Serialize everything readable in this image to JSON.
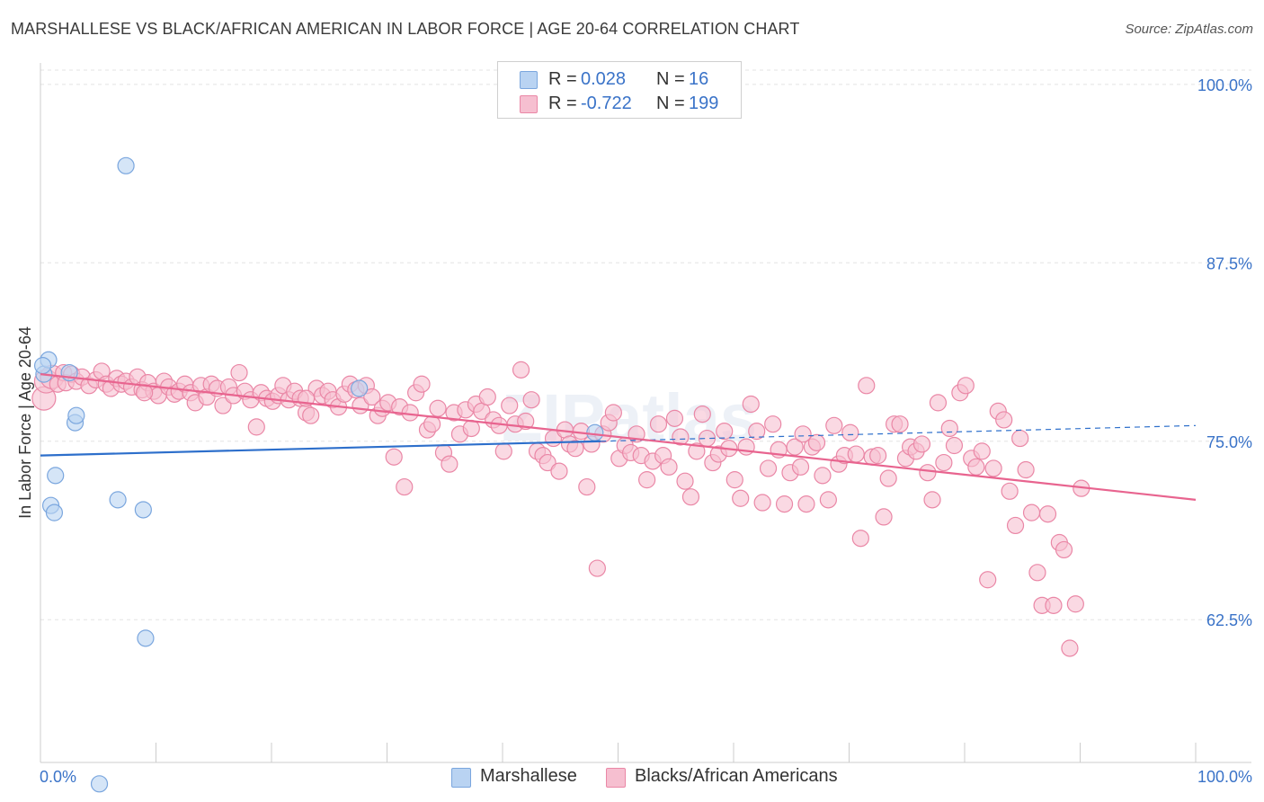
{
  "title": "MARSHALLESE VS BLACK/AFRICAN AMERICAN IN LABOR FORCE | AGE 20-64 CORRELATION CHART",
  "source": "Source: ZipAtlas.com",
  "watermark": "ZIPatlas",
  "legend": {
    "rows": [
      {
        "r_label": "R =",
        "r_value": "0.028",
        "n_label": "N =",
        "n_value": "16"
      },
      {
        "r_label": "R =",
        "r_value": "-0.722",
        "n_label": "N =",
        "n_value": "199"
      }
    ]
  },
  "bottom_legend": [
    "Marshallese",
    "Blacks/African Americans"
  ],
  "colors": {
    "blue_fill": "#b9d3f2",
    "blue_stroke": "#7aa6de",
    "blue_line": "#2d6fcb",
    "pink_fill": "#f6bfd0",
    "pink_stroke": "#ea87a6",
    "pink_line": "#e8648f",
    "tick_label": "#3a73c8",
    "grid": "#e3e3e3"
  },
  "chart_data": {
    "type": "scatter",
    "title": "MARSHALLESE VS BLACK/AFRICAN AMERICAN IN LABOR FORCE | AGE 20-64 CORRELATION CHART",
    "xlabel": "",
    "ylabel": "In Labor Force | Age 20-64",
    "xlim": [
      0,
      100
    ],
    "ylim": [
      52.5,
      101.5
    ],
    "x_tick_labels": [
      "0.0%",
      "100.0%"
    ],
    "y_ticks": [
      100.0,
      87.5,
      75.0,
      62.5
    ],
    "y_tick_labels": [
      "100.0%",
      "87.5%",
      "75.0%",
      "62.5%"
    ],
    "grid": true,
    "legend_position": "top-center",
    "series": [
      {
        "name": "Marshallese",
        "r": 0.028,
        "n": 16,
        "trend": {
          "x0": 0,
          "y0": 74.0,
          "x1": 48.5,
          "y1": 75.0,
          "dashed_to_x": 100,
          "dashed_to_y": 76.1
        },
        "points": [
          [
            0.3,
            79.7
          ],
          [
            0.7,
            80.7
          ],
          [
            2.5,
            79.8
          ],
          [
            3.0,
            76.3
          ],
          [
            3.1,
            76.8
          ],
          [
            0.9,
            70.5
          ],
          [
            1.2,
            70.0
          ],
          [
            1.3,
            72.6
          ],
          [
            6.7,
            70.9
          ],
          [
            8.9,
            70.2
          ],
          [
            7.4,
            94.3
          ],
          [
            9.1,
            61.2
          ],
          [
            5.1,
            51.0
          ],
          [
            27.6,
            78.7
          ],
          [
            48.0,
            75.6
          ],
          [
            0.2,
            80.3
          ]
        ]
      },
      {
        "name": "Blacks/African Americans",
        "r": -0.722,
        "n": 199,
        "trend": {
          "x0": 0,
          "y0": 79.7,
          "x1": 100,
          "y1": 70.9
        },
        "points": [
          [
            0.3,
            78.0
          ],
          [
            0.5,
            79.2
          ],
          [
            1.0,
            79.5
          ],
          [
            1.5,
            79.0
          ],
          [
            2.0,
            79.8
          ],
          [
            2.2,
            79.1
          ],
          [
            2.7,
            79.7
          ],
          [
            3.1,
            79.2
          ],
          [
            3.6,
            79.5
          ],
          [
            4.2,
            78.9
          ],
          [
            4.8,
            79.3
          ],
          [
            5.3,
            79.9
          ],
          [
            5.7,
            79.0
          ],
          [
            6.1,
            78.7
          ],
          [
            6.6,
            79.4
          ],
          [
            7.0,
            79.0
          ],
          [
            7.4,
            79.2
          ],
          [
            7.9,
            78.8
          ],
          [
            8.4,
            79.5
          ],
          [
            8.8,
            78.6
          ],
          [
            9.3,
            79.1
          ],
          [
            9.8,
            78.5
          ],
          [
            10.2,
            78.2
          ],
          [
            10.7,
            79.2
          ],
          [
            11.1,
            78.8
          ],
          [
            11.6,
            78.3
          ],
          [
            12.0,
            78.5
          ],
          [
            12.5,
            79.0
          ],
          [
            13.0,
            78.4
          ],
          [
            13.4,
            77.7
          ],
          [
            13.9,
            78.9
          ],
          [
            14.4,
            78.1
          ],
          [
            14.8,
            79.0
          ],
          [
            15.3,
            78.7
          ],
          [
            15.8,
            77.5
          ],
          [
            16.3,
            78.8
          ],
          [
            16.7,
            78.2
          ],
          [
            17.2,
            79.8
          ],
          [
            17.7,
            78.5
          ],
          [
            18.2,
            77.9
          ],
          [
            18.7,
            76.0
          ],
          [
            19.1,
            78.4
          ],
          [
            19.6,
            78.0
          ],
          [
            20.1,
            77.8
          ],
          [
            20.6,
            78.2
          ],
          [
            21.0,
            78.9
          ],
          [
            21.5,
            77.9
          ],
          [
            22.0,
            78.5
          ],
          [
            22.5,
            78.0
          ],
          [
            23.0,
            77.0
          ],
          [
            23.4,
            76.8
          ],
          [
            23.9,
            78.7
          ],
          [
            24.4,
            78.2
          ],
          [
            24.9,
            78.5
          ],
          [
            25.3,
            77.9
          ],
          [
            25.8,
            77.4
          ],
          [
            26.3,
            78.3
          ],
          [
            26.8,
            79.0
          ],
          [
            27.3,
            78.6
          ],
          [
            27.7,
            77.5
          ],
          [
            28.2,
            78.9
          ],
          [
            28.7,
            78.1
          ],
          [
            29.2,
            76.8
          ],
          [
            29.6,
            77.3
          ],
          [
            30.1,
            77.7
          ],
          [
            30.6,
            73.9
          ],
          [
            31.1,
            77.4
          ],
          [
            31.5,
            71.8
          ],
          [
            32.0,
            77.0
          ],
          [
            32.5,
            78.4
          ],
          [
            33.0,
            79.0
          ],
          [
            33.5,
            75.8
          ],
          [
            33.9,
            76.2
          ],
          [
            34.4,
            77.3
          ],
          [
            34.9,
            74.2
          ],
          [
            35.4,
            73.4
          ],
          [
            35.8,
            77.0
          ],
          [
            36.3,
            75.5
          ],
          [
            36.8,
            77.2
          ],
          [
            37.3,
            75.9
          ],
          [
            37.7,
            77.6
          ],
          [
            38.2,
            77.1
          ],
          [
            38.7,
            78.1
          ],
          [
            39.2,
            76.5
          ],
          [
            39.7,
            76.1
          ],
          [
            40.1,
            74.3
          ],
          [
            40.6,
            77.5
          ],
          [
            41.1,
            76.2
          ],
          [
            41.6,
            80.0
          ],
          [
            42.0,
            76.4
          ],
          [
            42.5,
            77.9
          ],
          [
            43.0,
            74.3
          ],
          [
            43.5,
            74.0
          ],
          [
            43.9,
            73.5
          ],
          [
            44.4,
            75.2
          ],
          [
            44.9,
            72.9
          ],
          [
            45.4,
            75.8
          ],
          [
            45.8,
            74.8
          ],
          [
            46.3,
            74.5
          ],
          [
            46.8,
            75.7
          ],
          [
            47.3,
            71.8
          ],
          [
            47.7,
            74.8
          ],
          [
            48.2,
            66.1
          ],
          [
            48.7,
            75.5
          ],
          [
            49.2,
            76.3
          ],
          [
            49.6,
            77.0
          ],
          [
            50.1,
            73.8
          ],
          [
            50.6,
            74.7
          ],
          [
            51.1,
            74.2
          ],
          [
            51.6,
            75.5
          ],
          [
            52.0,
            74.0
          ],
          [
            52.5,
            72.3
          ],
          [
            53.0,
            73.6
          ],
          [
            53.5,
            76.2
          ],
          [
            53.9,
            74.0
          ],
          [
            54.4,
            73.2
          ],
          [
            54.9,
            76.6
          ],
          [
            55.4,
            75.3
          ],
          [
            55.8,
            72.2
          ],
          [
            56.3,
            71.1
          ],
          [
            56.8,
            74.3
          ],
          [
            57.3,
            76.9
          ],
          [
            57.7,
            75.2
          ],
          [
            58.2,
            73.5
          ],
          [
            58.7,
            74.1
          ],
          [
            59.2,
            75.7
          ],
          [
            59.6,
            74.5
          ],
          [
            60.1,
            72.3
          ],
          [
            60.6,
            71.0
          ],
          [
            61.1,
            74.6
          ],
          [
            61.5,
            77.6
          ],
          [
            62.0,
            75.7
          ],
          [
            62.5,
            70.7
          ],
          [
            63.0,
            73.1
          ],
          [
            63.4,
            76.2
          ],
          [
            63.9,
            74.4
          ],
          [
            64.4,
            70.6
          ],
          [
            64.9,
            72.8
          ],
          [
            65.3,
            74.6
          ],
          [
            65.8,
            73.2
          ],
          [
            66.3,
            70.6
          ],
          [
            66.8,
            74.6
          ],
          [
            67.2,
            74.9
          ],
          [
            67.7,
            72.6
          ],
          [
            68.2,
            70.9
          ],
          [
            68.7,
            76.1
          ],
          [
            69.1,
            73.4
          ],
          [
            69.6,
            74.0
          ],
          [
            70.1,
            75.6
          ],
          [
            70.6,
            74.1
          ],
          [
            71.0,
            68.2
          ],
          [
            71.5,
            78.9
          ],
          [
            72.0,
            73.9
          ],
          [
            72.5,
            74.0
          ],
          [
            73.0,
            69.7
          ],
          [
            73.4,
            72.4
          ],
          [
            73.9,
            76.2
          ],
          [
            74.4,
            76.2
          ],
          [
            74.9,
            73.8
          ],
          [
            75.3,
            74.6
          ],
          [
            75.8,
            74.3
          ],
          [
            76.3,
            74.8
          ],
          [
            76.8,
            72.8
          ],
          [
            77.2,
            70.9
          ],
          [
            77.7,
            77.7
          ],
          [
            78.2,
            73.5
          ],
          [
            78.7,
            75.9
          ],
          [
            79.1,
            74.7
          ],
          [
            79.6,
            78.4
          ],
          [
            80.1,
            78.9
          ],
          [
            80.6,
            73.8
          ],
          [
            81.0,
            73.2
          ],
          [
            81.5,
            74.3
          ],
          [
            82.0,
            65.3
          ],
          [
            82.5,
            73.1
          ],
          [
            82.9,
            77.1
          ],
          [
            83.4,
            76.5
          ],
          [
            83.9,
            71.5
          ],
          [
            84.4,
            69.1
          ],
          [
            84.8,
            75.2
          ],
          [
            85.3,
            73.0
          ],
          [
            85.8,
            70.0
          ],
          [
            86.3,
            65.8
          ],
          [
            86.7,
            63.5
          ],
          [
            87.2,
            69.9
          ],
          [
            87.7,
            63.5
          ],
          [
            88.2,
            67.9
          ],
          [
            88.6,
            67.4
          ],
          [
            89.1,
            60.5
          ],
          [
            89.6,
            63.6
          ],
          [
            90.1,
            71.7
          ],
          [
            66.0,
            75.5
          ],
          [
            23.0,
            78.0
          ],
          [
            9.0,
            78.4
          ]
        ]
      }
    ]
  }
}
